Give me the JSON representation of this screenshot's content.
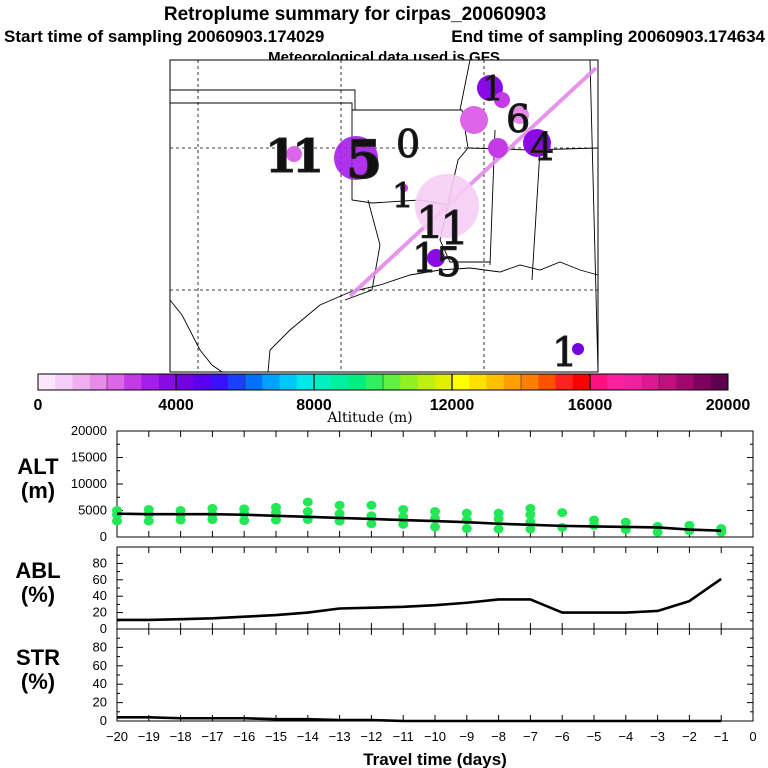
{
  "header": {
    "title": "Retroplume summary for cirpas_20060903",
    "start_label": "Start time of sampling 20060903.174029",
    "end_label": "End time of sampling 20060903.174634",
    "met_label": "Meteorological data used is GFS"
  },
  "colorbar": {
    "title": "Altitude (m)",
    "ticks": [
      "0",
      "4000",
      "8000",
      "12000",
      "16000",
      "20000"
    ],
    "tick_values": [
      0,
      4000,
      8000,
      12000,
      16000,
      20000
    ],
    "range": [
      0,
      20000
    ],
    "colors": [
      "#fbe6fb",
      "#f6cdf6",
      "#f0b0f0",
      "#e88be8",
      "#dd66e8",
      "#c43ae6",
      "#a51de8",
      "#8a0ae6",
      "#7300e0",
      "#5a00f0",
      "#3a10ff",
      "#1a40ff",
      "#0070ff",
      "#00a0ff",
      "#00c8f8",
      "#00e8e8",
      "#00f0c0",
      "#00f0a0",
      "#00f080",
      "#30f060",
      "#60f040",
      "#90f020",
      "#c0f010",
      "#e0f000",
      "#ffff00",
      "#ffe000",
      "#ffc000",
      "#ffa000",
      "#ff8000",
      "#ff5000",
      "#ff2020",
      "#ff0000",
      "#ff1080",
      "#ff20a0",
      "#f020a0",
      "#e01890",
      "#c01080",
      "#a00870",
      "#800060",
      "#600050"
    ]
  },
  "map": {
    "labels": [
      {
        "text": "1",
        "color_value": 3000
      },
      {
        "text": "1",
        "color_value": 3000
      },
      {
        "text": "5",
        "color_value": 3500
      },
      {
        "text": "0",
        "color_value": 3500
      },
      {
        "text": "1",
        "color_value": 2000
      },
      {
        "text": "1",
        "color_value": 2000
      },
      {
        "text": "1",
        "color_value": 2000
      },
      {
        "text": "1",
        "color_value": 2000
      },
      {
        "text": "5",
        "color_value": 2000
      },
      {
        "text": "4",
        "color_value": 3500
      },
      {
        "text": "1",
        "color_value": 3500
      },
      {
        "text": "6",
        "color_value": 3500
      },
      {
        "text": "1",
        "color_value": 3500
      }
    ],
    "plume_circles_altitude_m": [
      2500,
      3200,
      3600,
      3000,
      1200,
      2800,
      3400,
      2600,
      2000,
      1800,
      2400,
      3100,
      2200,
      3800,
      1500,
      3300,
      3700
    ]
  },
  "chart_data": [
    {
      "type": "line",
      "id": "alt",
      "ylabel_lines": [
        "ALT",
        "(m)"
      ],
      "x": [
        -20,
        -19,
        -18,
        -17,
        -16,
        -15,
        -14,
        -13,
        -12,
        -11,
        -10,
        -9,
        -8,
        -7,
        -6,
        -5,
        -4,
        -3,
        -2,
        -1
      ],
      "xlim": [
        -20,
        0
      ],
      "ylim": [
        0,
        20000
      ],
      "yticks": [
        0,
        5000,
        10000,
        15000,
        20000
      ],
      "series": [
        {
          "name": "median altitude",
          "color": "#000000",
          "values": [
            4400,
            4300,
            4300,
            4300,
            4200,
            4000,
            3800,
            3600,
            3400,
            3200,
            3000,
            2800,
            2500,
            2300,
            2100,
            2000,
            1900,
            1800,
            1400,
            1200
          ]
        }
      ],
      "scatter": {
        "color": "#22e855",
        "points": [
          {
            "x": -20,
            "y": 5000
          },
          {
            "x": -20,
            "y": 4200
          },
          {
            "x": -20,
            "y": 3000
          },
          {
            "x": -19,
            "y": 5200
          },
          {
            "x": -19,
            "y": 4300
          },
          {
            "x": -19,
            "y": 3000
          },
          {
            "x": -18,
            "y": 5000
          },
          {
            "x": -18,
            "y": 4200
          },
          {
            "x": -18,
            "y": 3200
          },
          {
            "x": -17,
            "y": 5400
          },
          {
            "x": -17,
            "y": 4300
          },
          {
            "x": -17,
            "y": 3300
          },
          {
            "x": -16,
            "y": 5300
          },
          {
            "x": -16,
            "y": 4400
          },
          {
            "x": -16,
            "y": 3100
          },
          {
            "x": -15,
            "y": 5600
          },
          {
            "x": -15,
            "y": 4600
          },
          {
            "x": -15,
            "y": 3200
          },
          {
            "x": -14,
            "y": 6600
          },
          {
            "x": -14,
            "y": 4800
          },
          {
            "x": -14,
            "y": 3300
          },
          {
            "x": -13,
            "y": 6000
          },
          {
            "x": -13,
            "y": 4400
          },
          {
            "x": -13,
            "y": 3000
          },
          {
            "x": -12,
            "y": 6000
          },
          {
            "x": -12,
            "y": 4000
          },
          {
            "x": -12,
            "y": 2500
          },
          {
            "x": -11,
            "y": 5200
          },
          {
            "x": -11,
            "y": 3800
          },
          {
            "x": -11,
            "y": 2400
          },
          {
            "x": -10,
            "y": 4800
          },
          {
            "x": -10,
            "y": 3500
          },
          {
            "x": -10,
            "y": 1900
          },
          {
            "x": -9,
            "y": 4500
          },
          {
            "x": -9,
            "y": 3200
          },
          {
            "x": -9,
            "y": 1600
          },
          {
            "x": -8,
            "y": 4500
          },
          {
            "x": -8,
            "y": 3400
          },
          {
            "x": -8,
            "y": 1500
          },
          {
            "x": -7,
            "y": 5400
          },
          {
            "x": -7,
            "y": 4200
          },
          {
            "x": -7,
            "y": 2800
          },
          {
            "x": -7,
            "y": 1500
          },
          {
            "x": -6,
            "y": 4600
          },
          {
            "x": -6,
            "y": 1800
          },
          {
            "x": -5,
            "y": 3200
          },
          {
            "x": -5,
            "y": 2200
          },
          {
            "x": -4,
            "y": 2800
          },
          {
            "x": -4,
            "y": 1400
          },
          {
            "x": -3,
            "y": 2000
          },
          {
            "x": -3,
            "y": 900
          },
          {
            "x": -2,
            "y": 2200
          },
          {
            "x": -2,
            "y": 1200
          },
          {
            "x": -1,
            "y": 1600
          },
          {
            "x": -1,
            "y": 900
          }
        ]
      }
    },
    {
      "type": "line",
      "id": "abl",
      "ylabel_lines": [
        "ABL",
        "(%)"
      ],
      "x": [
        -20,
        -19,
        -18,
        -17,
        -16,
        -15,
        -14,
        -13,
        -12,
        -11,
        -10,
        -9,
        -8,
        -7,
        -6,
        -5,
        -4,
        -3,
        -2,
        -1
      ],
      "xlim": [
        -20,
        0
      ],
      "ylim": [
        0,
        100
      ],
      "yticks": [
        0,
        20,
        40,
        60,
        80
      ],
      "series": [
        {
          "name": "ABL fraction",
          "color": "#000000",
          "values": [
            11,
            11,
            12,
            13,
            15,
            17,
            20,
            25,
            26,
            27,
            29,
            32,
            36,
            36,
            20,
            20,
            20,
            22,
            34,
            61
          ]
        }
      ]
    },
    {
      "type": "line",
      "id": "str",
      "ylabel_lines": [
        "STR",
        "(%)"
      ],
      "x": [
        -20,
        -19,
        -18,
        -17,
        -16,
        -15,
        -14,
        -13,
        -12,
        -11,
        -10,
        -9,
        -8,
        -7,
        -6,
        -5,
        -4,
        -3,
        -2,
        -1
      ],
      "xlim": [
        -20,
        0
      ],
      "ylim": [
        0,
        100
      ],
      "yticks": [
        0,
        20,
        40,
        60,
        80
      ],
      "xticks": [
        -20,
        -19,
        -18,
        -17,
        -16,
        -15,
        -14,
        -13,
        -12,
        -11,
        -10,
        -9,
        -8,
        -7,
        -6,
        -5,
        -4,
        -3,
        -2,
        -1,
        0
      ],
      "xtick_labels": [
        "−20",
        "−19",
        "−18",
        "−17",
        "−16",
        "−15",
        "−14",
        "−13",
        "−12",
        "−11",
        "−10",
        "−9",
        "−8",
        "−7",
        "−6",
        "−5",
        "−4",
        "−3",
        "−2",
        "−1",
        "0"
      ],
      "xlabel": "Travel time (days)",
      "series": [
        {
          "name": "stratospheric fraction",
          "color": "#000000",
          "values": [
            4,
            4,
            3,
            3,
            3,
            2,
            2,
            1,
            1,
            0,
            0,
            0,
            0,
            0,
            0,
            0,
            0,
            0,
            0,
            0
          ]
        }
      ]
    }
  ]
}
